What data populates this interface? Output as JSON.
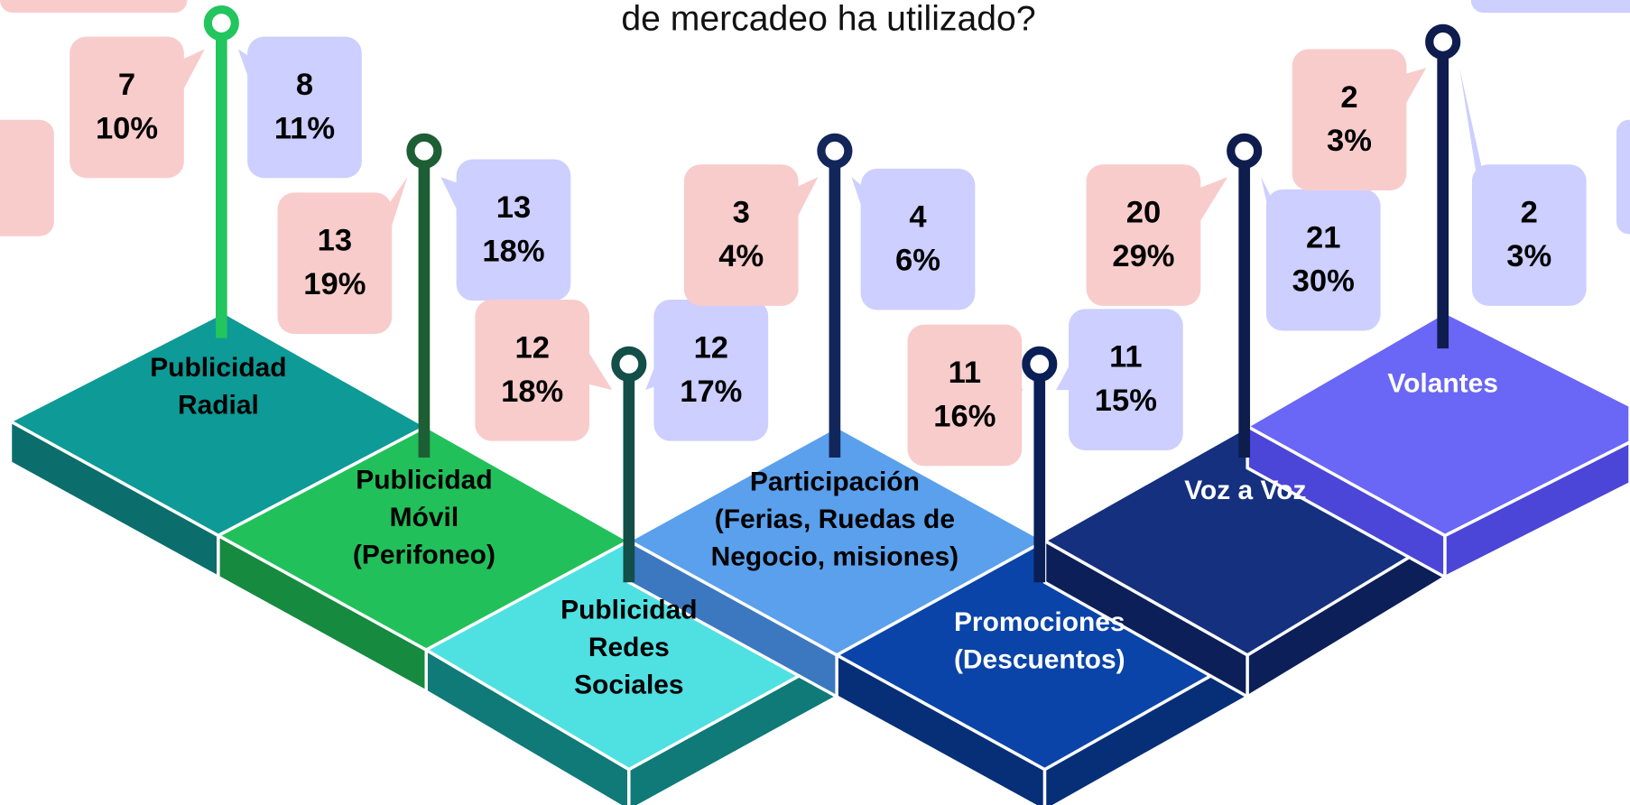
{
  "title": "de mercadeo ha utilizado?",
  "pieces": [
    {
      "label": [
        "Publicidad",
        "Radial"
      ],
      "callouts": [
        {
          "count": 7,
          "percent": "10%"
        },
        {
          "count": 8,
          "percent": "11%"
        }
      ]
    },
    {
      "label": [
        "Publicidad",
        "Móvil",
        "(Perifoneo)"
      ],
      "callouts": [
        {
          "count": 13,
          "percent": "19%"
        },
        {
          "count": 13,
          "percent": "18%"
        }
      ]
    },
    {
      "label": [
        "Publicidad",
        "Redes",
        "Sociales"
      ],
      "callouts": [
        {
          "count": 12,
          "percent": "18%"
        },
        {
          "count": 12,
          "percent": "17%"
        }
      ]
    },
    {
      "label": [
        "Participación",
        "(Ferias, Ruedas de",
        "Negocio, misiones)"
      ],
      "callouts": [
        {
          "count": 3,
          "percent": "4%"
        },
        {
          "count": 4,
          "percent": "6%"
        }
      ]
    },
    {
      "label": [
        "Promociones",
        "(Descuentos)"
      ],
      "callouts": [
        {
          "count": 11,
          "percent": "16%"
        },
        {
          "count": 11,
          "percent": "15%"
        }
      ]
    },
    {
      "label": [
        "Voz a Voz"
      ],
      "callouts": [
        {
          "count": 20,
          "percent": "29%"
        },
        {
          "count": 21,
          "percent": "30%"
        }
      ]
    },
    {
      "label": [
        "Volantes"
      ],
      "callouts": [
        {
          "count": 2,
          "percent": "3%"
        },
        {
          "count": 2,
          "percent": "3%"
        }
      ]
    }
  ]
}
